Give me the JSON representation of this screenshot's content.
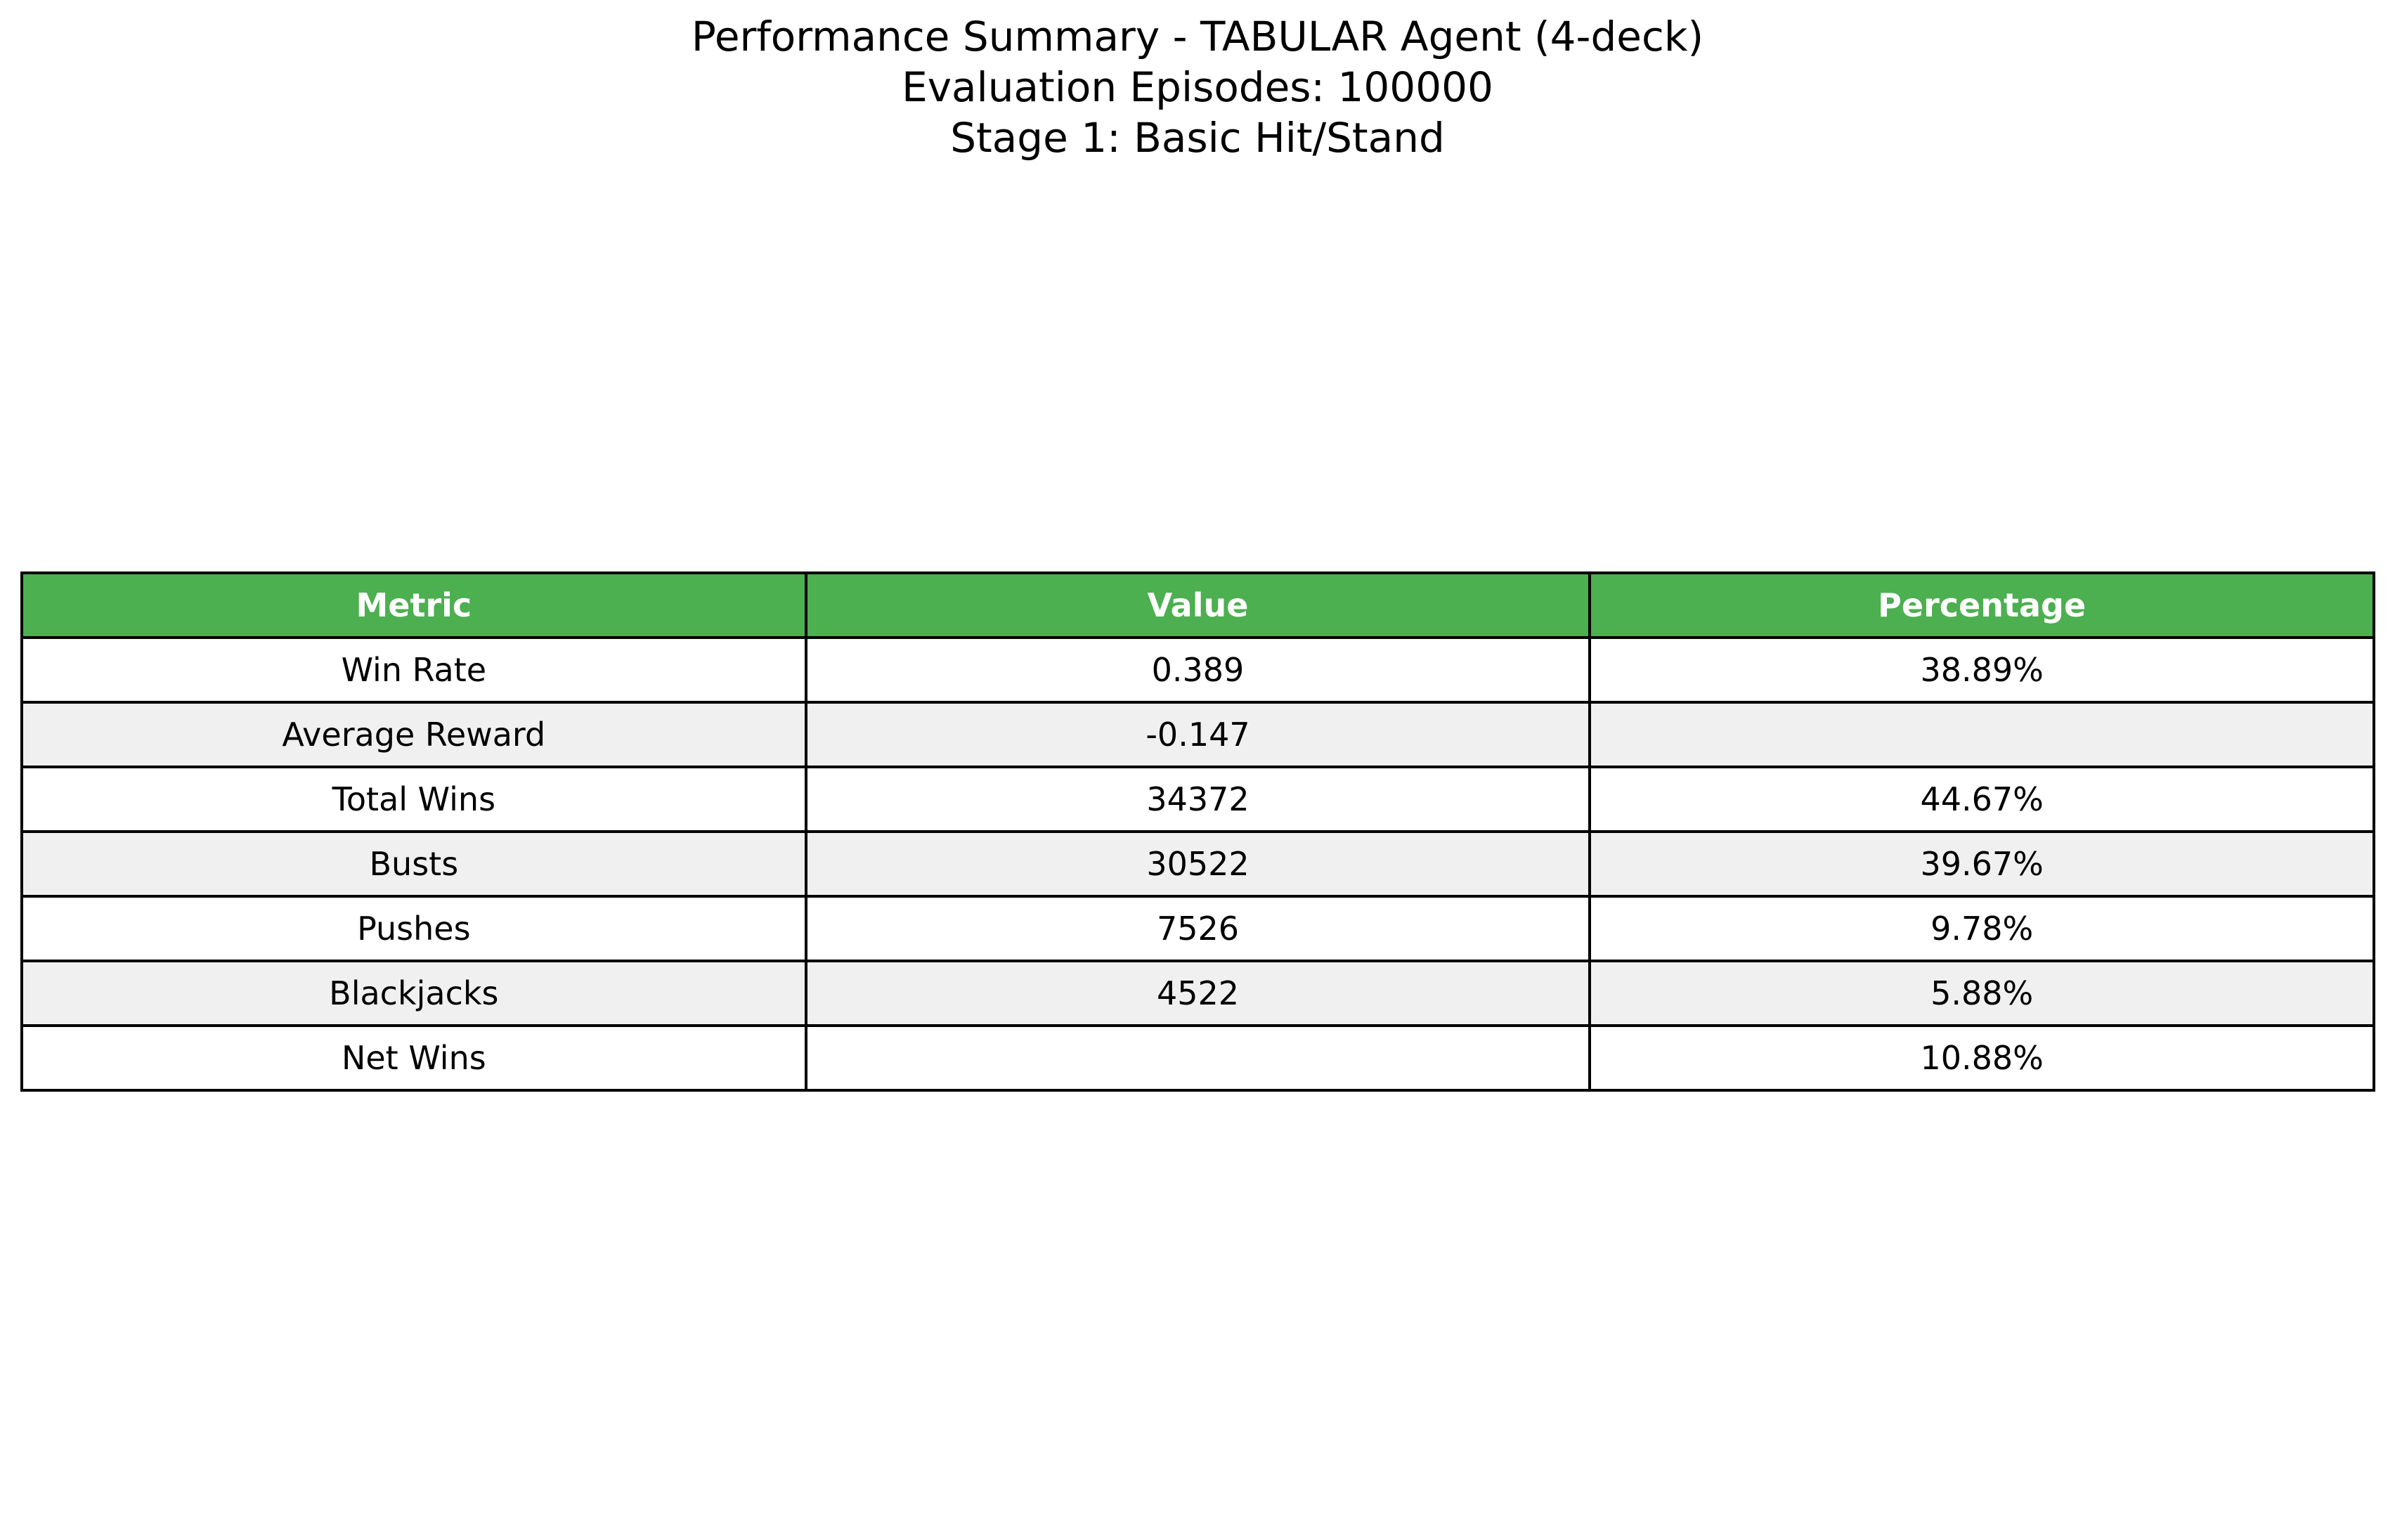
{
  "chart_data": {
    "type": "table",
    "title_lines": [
      "Performance Summary - TABULAR Agent (4-deck)",
      "Evaluation Episodes: 100000",
      "Stage 1: Basic Hit/Stand"
    ],
    "columns": [
      "Metric",
      "Value",
      "Percentage"
    ],
    "rows": [
      [
        "Win Rate",
        "0.389",
        "38.89%"
      ],
      [
        "Average Reward",
        "-0.147",
        ""
      ],
      [
        "Total Wins",
        "34372",
        "44.67%"
      ],
      [
        "Busts",
        "30522",
        "39.67%"
      ],
      [
        "Pushes",
        "7526",
        "9.78%"
      ],
      [
        "Blackjacks",
        "4522",
        "5.88%"
      ],
      [
        "Net Wins",
        "",
        "10.88%"
      ]
    ]
  },
  "colors": {
    "header_background": "#4caf50",
    "header_text": "#ffffff",
    "row_even_background": "#ffffff",
    "row_odd_background": "#f0f0f0",
    "border": "#000000"
  }
}
